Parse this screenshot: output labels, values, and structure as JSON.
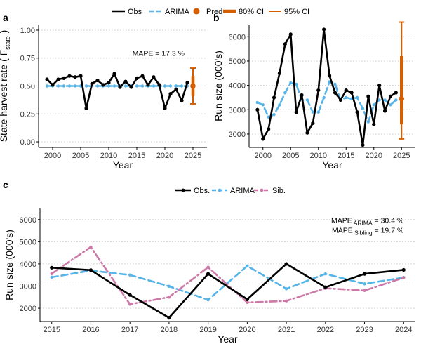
{
  "colors": {
    "obs": "#000000",
    "arima": "#56b4e9",
    "pred": "#d55e00",
    "sib": "#cc79a7"
  },
  "chart_data": [
    {
      "id": "a",
      "panel_label": "a",
      "type": "line",
      "ylabel_parts": [
        "State harvest rate ( F",
        "state",
        " )"
      ],
      "xlabel": "Year",
      "xlim": [
        1997.5,
        2027.5
      ],
      "ylim": [
        -0.05,
        1.05
      ],
      "xticks": [
        2000,
        2005,
        2010,
        2015,
        2020,
        2025
      ],
      "yticks": [
        0.0,
        0.25,
        0.5,
        0.75,
        1.0
      ],
      "ytick_labels": [
        "0.00",
        "0.25",
        "0.50",
        "0.75",
        "1.00"
      ],
      "x": [
        1999,
        2000,
        2001,
        2002,
        2003,
        2004,
        2005,
        2006,
        2007,
        2008,
        2009,
        2010,
        2011,
        2012,
        2013,
        2014,
        2015,
        2016,
        2017,
        2018,
        2019,
        2020,
        2021,
        2022,
        2023,
        2024
      ],
      "series": [
        {
          "name": "Obs",
          "style": "obs",
          "values": [
            0.56,
            0.51,
            0.56,
            0.57,
            0.59,
            0.58,
            0.59,
            0.3,
            0.52,
            0.55,
            0.51,
            0.53,
            0.61,
            0.49,
            0.54,
            0.49,
            0.57,
            0.59,
            0.51,
            0.58,
            0.51,
            0.3,
            0.43,
            0.47,
            0.37,
            0.53
          ]
        },
        {
          "name": "ARIMA",
          "style": "arima",
          "values": [
            0.5,
            0.5,
            0.5,
            0.5,
            0.5,
            0.5,
            0.5,
            0.5,
            0.5,
            0.5,
            0.5,
            0.5,
            0.5,
            0.5,
            0.5,
            0.5,
            0.5,
            0.5,
            0.5,
            0.5,
            0.5,
            0.5,
            0.5,
            0.5,
            0.5,
            0.5
          ]
        }
      ],
      "pred": {
        "x": 2025,
        "y": 0.5,
        "ci80": [
          0.41,
          0.59
        ],
        "ci95": [
          0.34,
          0.66
        ]
      },
      "annotations": [
        {
          "text": "MAPE  = 17.3 %",
          "x": 2023.5,
          "y": 0.77
        }
      ]
    },
    {
      "id": "b",
      "panel_label": "b",
      "type": "line",
      "ylabel": "Run size (000's)",
      "xlabel": "Year",
      "xlim": [
        1997.5,
        2027.5
      ],
      "ylim": [
        1450,
        6500
      ],
      "xticks": [
        2000,
        2005,
        2010,
        2015,
        2020,
        2025
      ],
      "yticks": [
        2000,
        3000,
        4000,
        5000,
        6000
      ],
      "ytick_labels": [
        "2000",
        "3000",
        "4000",
        "5000",
        "6000"
      ],
      "x": [
        1999,
        2000,
        2001,
        2002,
        2003,
        2004,
        2005,
        2006,
        2007,
        2008,
        2009,
        2010,
        2011,
        2012,
        2013,
        2014,
        2015,
        2016,
        2017,
        2018,
        2019,
        2020,
        2021,
        2022,
        2023,
        2024
      ],
      "series": [
        {
          "name": "Obs",
          "style": "obs",
          "values": [
            3000,
            1800,
            2200,
            3500,
            4500,
            5700,
            6100,
            2900,
            3600,
            2050,
            2450,
            3800,
            6300,
            4400,
            3700,
            3400,
            3800,
            3700,
            2900,
            1550,
            3550,
            2400,
            4000,
            2950,
            3550,
            3700
          ]
        },
        {
          "name": "ARIMA",
          "style": "arima",
          "values": [
            3300,
            3200,
            2700,
            2800,
            3200,
            3700,
            4100,
            4050,
            3400,
            3400,
            2900,
            2900,
            3500,
            4150,
            4050,
            3400,
            3500,
            3450,
            3500,
            3050,
            2500,
            3200,
            3400,
            3400,
            3200,
            3400
          ]
        }
      ],
      "pred": {
        "x": 2025,
        "y": 3450,
        "ci80": [
          2400,
          5200
        ],
        "ci95": [
          1800,
          6600
        ]
      }
    },
    {
      "id": "c",
      "panel_label": "c",
      "type": "line",
      "ylabel": "Run size (000's)",
      "xlabel": "Year",
      "xlim": [
        2014.7,
        2024.3
      ],
      "ylim": [
        1400,
        6500
      ],
      "xticks": [
        2015,
        2016,
        2017,
        2018,
        2019,
        2020,
        2021,
        2022,
        2023,
        2024
      ],
      "yticks": [
        2000,
        3000,
        4000,
        5000,
        6000
      ],
      "ytick_labels": [
        "2000",
        "3000",
        "4000",
        "5000",
        "6000"
      ],
      "x": [
        2015,
        2016,
        2017,
        2018,
        2019,
        2020,
        2021,
        2022,
        2023,
        2024
      ],
      "series": [
        {
          "name": "Obs.",
          "style": "obs",
          "values": [
            3830,
            3720,
            2600,
            1570,
            3550,
            2400,
            4000,
            2950,
            3550,
            3730
          ]
        },
        {
          "name": "ARIMA",
          "style": "arima",
          "values": [
            3400,
            3700,
            3500,
            2990,
            2380,
            3910,
            2880,
            3550,
            3100,
            3390
          ]
        },
        {
          "name": "Sib.",
          "style": "sib",
          "values": [
            3560,
            4760,
            2180,
            2500,
            3850,
            2260,
            2330,
            2900,
            2800,
            3380
          ]
        }
      ],
      "annotations": [
        {
          "text": "MAPE",
          "sub": "ARIMA",
          "tail": " = 30.4 %",
          "x": 2024.0,
          "y": 5850
        },
        {
          "text": "MAPE",
          "sub": "Sibling",
          "tail": " = 19.7 %",
          "x": 2024.0,
          "y": 5400
        }
      ]
    }
  ],
  "legend_top": [
    {
      "label": "Obs",
      "kind": "obs"
    },
    {
      "label": "ARIMA",
      "kind": "arima"
    },
    {
      "label": "Pred",
      "kind": "pred"
    },
    {
      "label": "80% CI",
      "kind": "ci80"
    },
    {
      "label": "95% CI",
      "kind": "ci95"
    }
  ],
  "legend_c": [
    {
      "label": "Obs.",
      "kind": "obs"
    },
    {
      "label": "ARIMA",
      "kind": "arima"
    },
    {
      "label": "Sib.",
      "kind": "sib"
    }
  ]
}
